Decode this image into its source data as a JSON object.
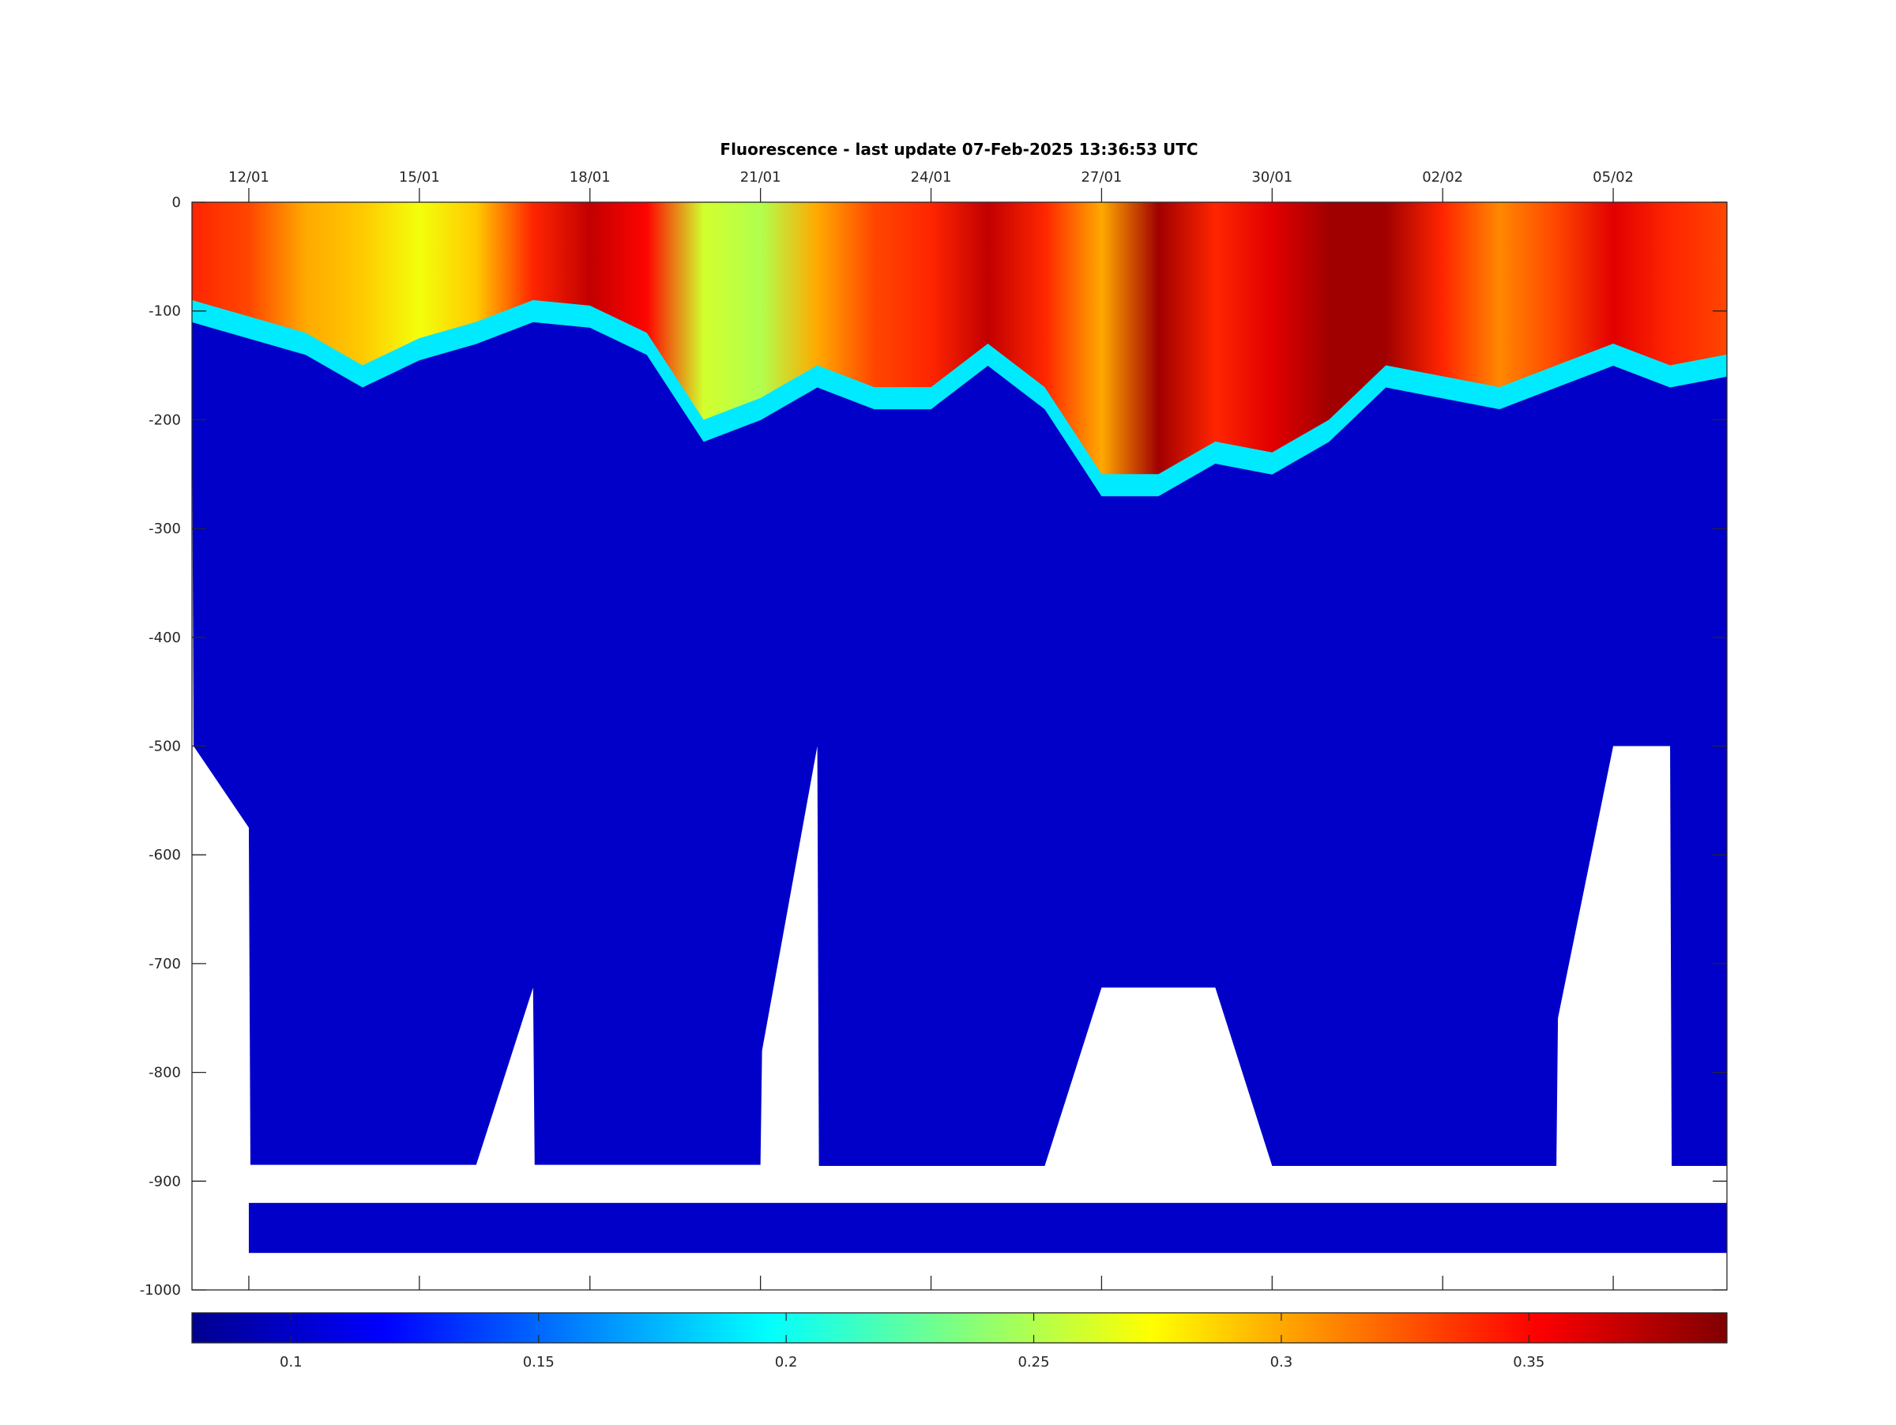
{
  "chart_data": {
    "type": "heatmap",
    "title": "Fluorescence - last update 07-Feb-2025 13:36:53 UTC",
    "xlabel": "",
    "ylabel": "",
    "x_axis": {
      "type": "date",
      "start": "2025-01-11",
      "end": "2025-02-07",
      "ticks": [
        "12/01",
        "15/01",
        "18/01",
        "21/01",
        "24/01",
        "27/01",
        "30/01",
        "02/02",
        "05/02"
      ]
    },
    "y_axis": {
      "ylim": [
        -1000,
        0
      ],
      "ticks": [
        0,
        -100,
        -200,
        -300,
        -400,
        -500,
        -600,
        -700,
        -800,
        -900,
        -1000
      ],
      "tick_labels": [
        "0",
        "-100",
        "-200",
        "-300",
        "-400",
        "-500",
        "-600",
        "-700",
        "-800",
        "-900",
        "-1000"
      ]
    },
    "colorbar": {
      "colormap": "jet",
      "range": [
        0.08,
        0.39
      ],
      "ticks": [
        0.1,
        0.15,
        0.2,
        0.25,
        0.3,
        0.35
      ],
      "tick_labels": [
        "0.1",
        "0.15",
        "0.2",
        "0.25",
        "0.3",
        "0.35"
      ],
      "placement": "bottom"
    },
    "data_coverage": {
      "profile_bottom_depth": [
        {
          "date": "2025-01-11",
          "depth": -170
        },
        {
          "date": "2025-01-11",
          "depth": -500
        },
        {
          "date": "2025-01-12",
          "depth": -575
        },
        {
          "date": "2025-01-12",
          "depth": -885
        },
        {
          "date": "2025-01-16",
          "depth": -885
        },
        {
          "date": "2025-01-17",
          "depth": -722
        },
        {
          "date": "2025-01-17",
          "depth": -885
        },
        {
          "date": "2025-01-21",
          "depth": -885
        },
        {
          "date": "2025-01-21",
          "depth": -780
        },
        {
          "date": "2025-01-22",
          "depth": -500
        },
        {
          "date": "2025-01-22",
          "depth": -886
        },
        {
          "date": "2025-01-26",
          "depth": -886
        },
        {
          "date": "2025-01-27",
          "depth": -722
        },
        {
          "date": "2025-01-29",
          "depth": -722
        },
        {
          "date": "2025-01-30",
          "depth": -886
        },
        {
          "date": "2025-02-04",
          "depth": -886
        },
        {
          "date": "2025-02-04",
          "depth": -750
        },
        {
          "date": "2025-02-05",
          "depth": -500
        },
        {
          "date": "2025-02-06",
          "depth": -500
        },
        {
          "date": "2025-02-06",
          "depth": -886
        },
        {
          "date": "2025-02-07",
          "depth": -886
        },
        {
          "date": "2025-02-07",
          "depth": -415
        }
      ],
      "deep_band": {
        "start": "2025-01-12",
        "end": "2025-02-07",
        "top": -920,
        "bottom": -966
      }
    },
    "surface_layer_bottom_depth": [
      {
        "date": "2025-01-11",
        "depth": -90
      },
      {
        "date": "2025-01-12",
        "depth": -105
      },
      {
        "date": "2025-01-13",
        "depth": -120
      },
      {
        "date": "2025-01-14",
        "depth": -150
      },
      {
        "date": "2025-01-15",
        "depth": -125
      },
      {
        "date": "2025-01-16",
        "depth": -110
      },
      {
        "date": "2025-01-17",
        "depth": -90
      },
      {
        "date": "2025-01-18",
        "depth": -95
      },
      {
        "date": "2025-01-19",
        "depth": -120
      },
      {
        "date": "2025-01-20",
        "depth": -200
      },
      {
        "date": "2025-01-21",
        "depth": -180
      },
      {
        "date": "2025-01-22",
        "depth": -150
      },
      {
        "date": "2025-01-23",
        "depth": -170
      },
      {
        "date": "2025-01-24",
        "depth": -170
      },
      {
        "date": "2025-01-25",
        "depth": -130
      },
      {
        "date": "2025-01-26",
        "depth": -170
      },
      {
        "date": "2025-01-27",
        "depth": -250
      },
      {
        "date": "2025-01-28",
        "depth": -250
      },
      {
        "date": "2025-01-29",
        "depth": -220
      },
      {
        "date": "2025-01-30",
        "depth": -230
      },
      {
        "date": "2025-01-31",
        "depth": -200
      },
      {
        "date": "2025-02-01",
        "depth": -150
      },
      {
        "date": "2025-02-02",
        "depth": -160
      },
      {
        "date": "2025-02-03",
        "depth": -170
      },
      {
        "date": "2025-02-04",
        "depth": -150
      },
      {
        "date": "2025-02-05",
        "depth": -130
      },
      {
        "date": "2025-02-06",
        "depth": -150
      },
      {
        "date": "2025-02-07",
        "depth": -140
      }
    ],
    "surface_layer_fluorescence": [
      {
        "date": "2025-01-11",
        "value": 0.34
      },
      {
        "date": "2025-01-12",
        "value": 0.33
      },
      {
        "date": "2025-01-13",
        "value": 0.3
      },
      {
        "date": "2025-01-14",
        "value": 0.29
      },
      {
        "date": "2025-01-15",
        "value": 0.27
      },
      {
        "date": "2025-01-16",
        "value": 0.29
      },
      {
        "date": "2025-01-17",
        "value": 0.34
      },
      {
        "date": "2025-01-18",
        "value": 0.37
      },
      {
        "date": "2025-01-19",
        "value": 0.35
      },
      {
        "date": "2025-01-20",
        "value": 0.26
      },
      {
        "date": "2025-01-21",
        "value": 0.25
      },
      {
        "date": "2025-01-22",
        "value": 0.3
      },
      {
        "date": "2025-01-23",
        "value": 0.33
      },
      {
        "date": "2025-01-24",
        "value": 0.34
      },
      {
        "date": "2025-01-25",
        "value": 0.37
      },
      {
        "date": "2025-01-26",
        "value": 0.34
      },
      {
        "date": "2025-01-27",
        "value": 0.3
      },
      {
        "date": "2025-01-28",
        "value": 0.38
      },
      {
        "date": "2025-01-29",
        "value": 0.34
      },
      {
        "date": "2025-01-30",
        "value": 0.36
      },
      {
        "date": "2025-01-31",
        "value": 0.38
      },
      {
        "date": "2025-02-01",
        "value": 0.38
      },
      {
        "date": "2025-02-02",
        "value": 0.34
      },
      {
        "date": "2025-02-03",
        "value": 0.31
      },
      {
        "date": "2025-02-04",
        "value": 0.33
      },
      {
        "date": "2025-02-05",
        "value": 0.36
      },
      {
        "date": "2025-02-06",
        "value": 0.34
      },
      {
        "date": "2025-02-07",
        "value": 0.33
      }
    ],
    "deep_fluorescence": 0.1,
    "grid": false,
    "legend": "none"
  }
}
